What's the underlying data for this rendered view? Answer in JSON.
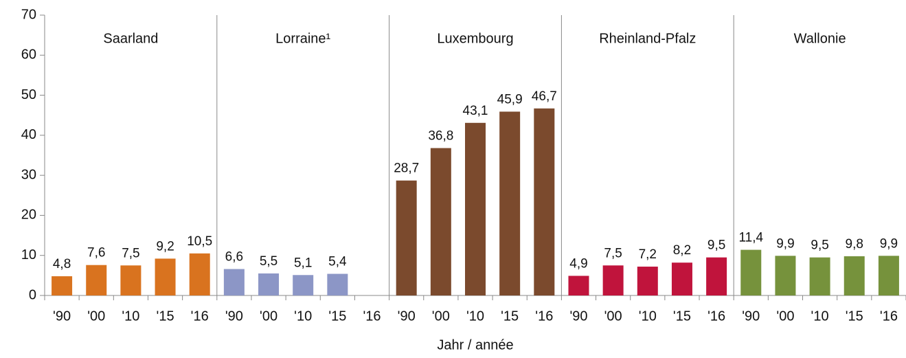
{
  "chart_data": {
    "type": "bar",
    "categories": [
      "'90",
      "'00",
      "'10",
      "'15",
      "'16"
    ],
    "series": [
      {
        "name": "Saarland",
        "color": "#d9731f",
        "values": [
          4.8,
          7.6,
          7.5,
          9.2,
          10.5
        ],
        "value_labels": [
          "4,8",
          "7,6",
          "7,5",
          "9,2",
          "10,5"
        ]
      },
      {
        "name": "Lorraine¹",
        "color": "#8c96c6",
        "values": [
          6.6,
          5.5,
          5.1,
          5.4,
          null
        ],
        "value_labels": [
          "6,6",
          "5,5",
          "5,1",
          "5,4",
          null
        ]
      },
      {
        "name": "Luxembourg",
        "color": "#7b4a2d",
        "values": [
          28.7,
          36.8,
          43.1,
          45.9,
          46.7
        ],
        "value_labels": [
          "28,7",
          "36,8",
          "43,1",
          "45,9",
          "46,7"
        ]
      },
      {
        "name": "Rheinland-Pfalz",
        "color": "#c0143c",
        "values": [
          4.9,
          7.5,
          7.2,
          8.2,
          9.5
        ],
        "value_labels": [
          "4,9",
          "7,5",
          "7,2",
          "8,2",
          "9,5"
        ]
      },
      {
        "name": "Wallonie",
        "color": "#76923c",
        "values": [
          11.4,
          9.9,
          9.5,
          9.8,
          9.9
        ],
        "value_labels": [
          "11,4",
          "9,9",
          "9,5",
          "9,8",
          "9,9"
        ]
      }
    ],
    "xlabel": "Jahr / année",
    "ylim": [
      0,
      70
    ],
    "yticks": [
      0,
      10,
      20,
      30,
      40,
      50,
      60,
      70
    ]
  }
}
